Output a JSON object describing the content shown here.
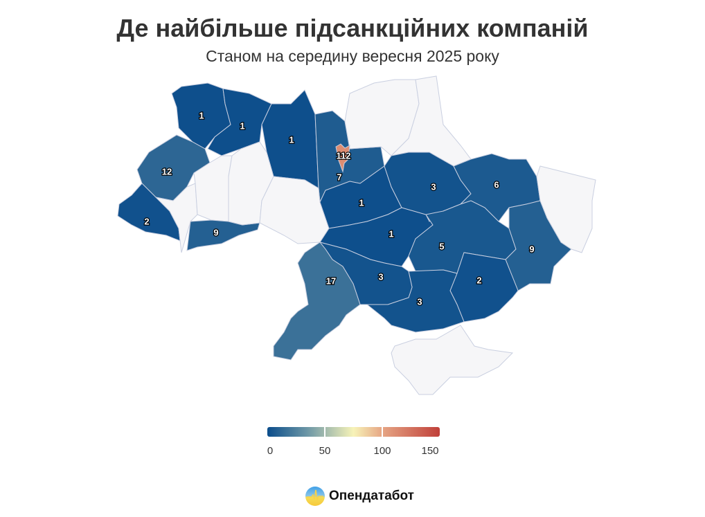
{
  "title": "Де найбільше підсанкційних компаній",
  "subtitle": "Станом на середину вересня 2025 року",
  "colors": {
    "no_data": "#f6f6f8",
    "scale": [
      "#0b4d8b",
      "#6d97a6",
      "#f7f3b8",
      "#e6a584",
      "#c0403a"
    ],
    "scale_stops": [
      0,
      35,
      75,
      100,
      150
    ]
  },
  "legend": {
    "min": 0,
    "max": 150,
    "ticks": [
      "0",
      "50",
      "100",
      "150"
    ],
    "tick_values": [
      0,
      50,
      100,
      150
    ]
  },
  "chart_data": {
    "type": "choropleth",
    "regions": [
      {
        "name": "Volyn",
        "value": 1
      },
      {
        "name": "Rivne",
        "value": 1
      },
      {
        "name": "Zhytomyr",
        "value": 1
      },
      {
        "name": "Kyiv oblast",
        "value": 7
      },
      {
        "name": "Kyiv city",
        "value": 112
      },
      {
        "name": "Chernihiv",
        "value": null
      },
      {
        "name": "Sumy",
        "value": null
      },
      {
        "name": "Lviv",
        "value": 12
      },
      {
        "name": "Zakarpattia",
        "value": 2
      },
      {
        "name": "Ivano-Frankivsk",
        "value": null
      },
      {
        "name": "Ternopil",
        "value": null
      },
      {
        "name": "Chernivtsi",
        "value": 9
      },
      {
        "name": "Khmelnytskyi",
        "value": null
      },
      {
        "name": "Vinnytsia",
        "value": null
      },
      {
        "name": "Cherkasy",
        "value": 1
      },
      {
        "name": "Kirovohrad",
        "value": 1
      },
      {
        "name": "Poltava",
        "value": 3
      },
      {
        "name": "Kharkiv",
        "value": 6
      },
      {
        "name": "Dnipropetrovsk",
        "value": 5
      },
      {
        "name": "Donetsk",
        "value": 9
      },
      {
        "name": "Luhansk",
        "value": null
      },
      {
        "name": "Zaporizhzhia",
        "value": 2
      },
      {
        "name": "Kherson",
        "value": 3
      },
      {
        "name": "Mykolaiv",
        "value": 3
      },
      {
        "name": "Odesa",
        "value": 17
      },
      {
        "name": "Crimea",
        "value": null
      }
    ]
  },
  "logo": {
    "text": "Опендатабот"
  }
}
